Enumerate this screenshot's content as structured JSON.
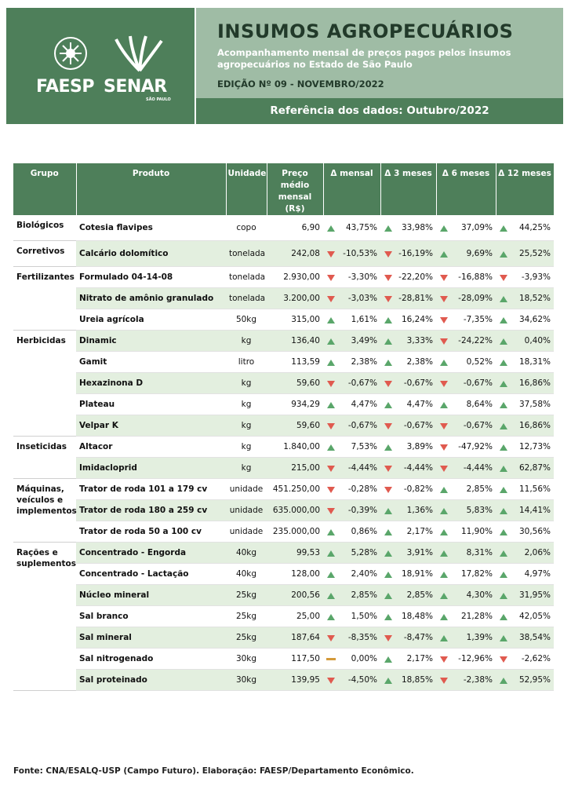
{
  "header": {
    "logo_left": "FAESP",
    "logo_right": "SENAR",
    "logo_sub": "SÃO PAULO",
    "title": "INSUMOS AGROPECUÁRIOS",
    "subtitle": "Acompanhamento mensal de preços pagos pelos insumos agropecuários no Estado de São Paulo",
    "edition": "EDIÇÃO Nº 09 - NOVEMBRO/2022",
    "reference": "Referência dos dados: Outubro/2022"
  },
  "table": {
    "columns": [
      "Grupo",
      "Produto",
      "Unidade",
      "Preço médio mensal (R$)",
      "Δ mensal",
      "Δ 3 meses",
      "Δ 6 meses",
      "Δ 12 meses"
    ],
    "groups": [
      {
        "name": "Biológicos",
        "rows": [
          [
            "Cotesia flavipes",
            "copo",
            "6,90",
            "43,75%",
            "33,98%",
            "37,09%",
            "44,25%"
          ]
        ]
      },
      {
        "name": "Corretivos",
        "rows": [
          [
            "Calcário dolomítico",
            "tonelada",
            "242,08",
            "-10,53%",
            "-16,19%",
            "9,69%",
            "25,52%"
          ]
        ]
      },
      {
        "name": "Fertilizantes",
        "rows": [
          [
            "Formulado 04-14-08",
            "tonelada",
            "2.930,00",
            "-3,30%",
            "-22,20%",
            "-16,88%",
            "-3,93%"
          ],
          [
            "Nitrato de amônio granulado",
            "tonelada",
            "3.200,00",
            "-3,03%",
            "-28,81%",
            "-28,09%",
            "18,52%"
          ],
          [
            "Ureia agrícola",
            "50kg",
            "315,00",
            "1,61%",
            "16,24%",
            "-7,35%",
            "34,62%"
          ]
        ]
      },
      {
        "name": "Herbicidas",
        "rows": [
          [
            "Dinamic",
            "kg",
            "136,40",
            "3,49%",
            "3,33%",
            "-24,22%",
            "0,40%"
          ],
          [
            "Gamit",
            "litro",
            "113,59",
            "2,38%",
            "2,38%",
            "0,52%",
            "18,31%"
          ],
          [
            "Hexazinona D",
            "kg",
            "59,60",
            "-0,67%",
            "-0,67%",
            "-0,67%",
            "16,86%"
          ],
          [
            "Plateau",
            "kg",
            "934,29",
            "4,47%",
            "4,47%",
            "8,64%",
            "37,58%"
          ],
          [
            "Velpar K",
            "kg",
            "59,60",
            "-0,67%",
            "-0,67%",
            "-0,67%",
            "16,86%"
          ]
        ]
      },
      {
        "name": "Inseticidas",
        "rows": [
          [
            "Altacor",
            "kg",
            "1.840,00",
            "7,53%",
            "3,89%",
            "-47,92%",
            "12,73%"
          ],
          [
            "Imidacloprid",
            "kg",
            "215,00",
            "-4,44%",
            "-4,44%",
            "-4,44%",
            "62,87%"
          ]
        ]
      },
      {
        "name": "Máquinas, veículos e implementos",
        "rows": [
          [
            "Trator de roda 101 a 179 cv",
            "unidade",
            "451.250,00",
            "-0,28%",
            "-0,82%",
            "2,85%",
            "11,56%"
          ],
          [
            "Trator de roda 180 a 259 cv",
            "unidade",
            "635.000,00",
            "-0,39%",
            "1,36%",
            "5,83%",
            "14,41%"
          ],
          [
            "Trator de roda 50 a 100 cv",
            "unidade",
            "235.000,00",
            "0,86%",
            "2,17%",
            "11,90%",
            "30,56%"
          ]
        ]
      },
      {
        "name": "Rações e suplementos",
        "rows": [
          [
            "Concentrado - Engorda",
            "40kg",
            "99,53",
            "5,28%",
            "3,91%",
            "8,31%",
            "2,06%"
          ],
          [
            "Concentrado - Lactação",
            "40kg",
            "128,00",
            "2,40%",
            "18,91%",
            "17,82%",
            "4,97%"
          ],
          [
            "Núcleo mineral",
            "25kg",
            "200,56",
            "2,85%",
            "2,85%",
            "4,30%",
            "31,95%"
          ],
          [
            "Sal branco",
            "25kg",
            "25,00",
            "1,50%",
            "18,48%",
            "21,28%",
            "42,05%"
          ],
          [
            "Sal mineral",
            "25kg",
            "187,64",
            "-8,35%",
            "-8,47%",
            "1,39%",
            "38,54%"
          ],
          [
            "Sal nitrogenado",
            "30kg",
            "117,50",
            "0,00%",
            "2,17%",
            "-12,96%",
            "-2,62%"
          ],
          [
            "Sal proteinado",
            "30kg",
            "139,95",
            "-4,50%",
            "18,85%",
            "-2,38%",
            "52,95%"
          ]
        ]
      }
    ]
  },
  "footer": "Fonte: CNA/ESALQ-USP (Campo Futuro). Elaboração: FAESP/Departamento Econômico."
}
